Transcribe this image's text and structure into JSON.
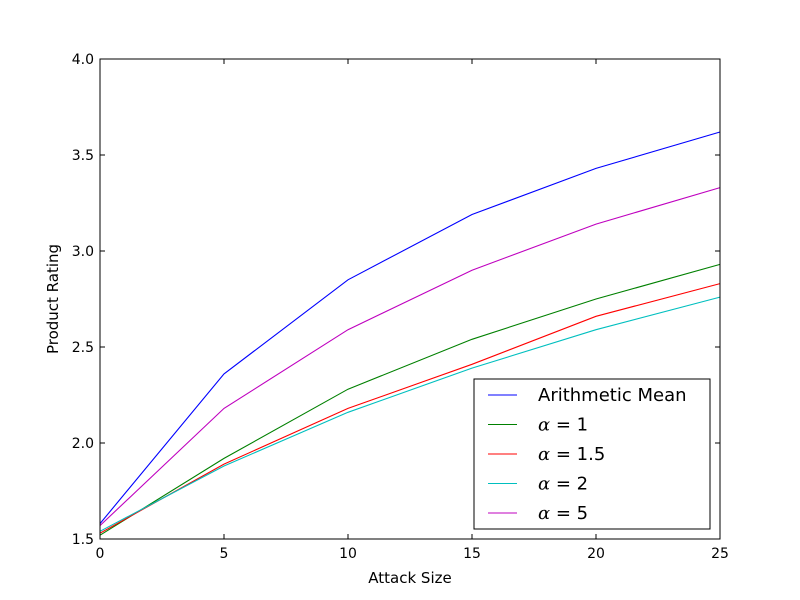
{
  "chart_data": {
    "type": "line",
    "title": "",
    "xlabel": "Attack Size",
    "ylabel": "Product Rating",
    "xlim": [
      0,
      25
    ],
    "ylim": [
      1.5,
      4.0
    ],
    "xticks": [
      0,
      5,
      10,
      15,
      20,
      25
    ],
    "yticks": [
      1.5,
      2.0,
      2.5,
      3.0,
      3.5,
      4.0
    ],
    "xtick_labels": [
      "0",
      "5",
      "10",
      "15",
      "20",
      "25"
    ],
    "ytick_labels": [
      "1.5",
      "2.0",
      "2.5",
      "3.0",
      "3.5",
      "4.0"
    ],
    "grid": false,
    "legend_position": "lower-right",
    "x": [
      0,
      5,
      10,
      15,
      20,
      25
    ],
    "series": [
      {
        "name": "Arithmetic Mean",
        "symbol": "",
        "value_text": "Arithmetic Mean",
        "color": "#0000ff",
        "values": [
          1.58,
          2.36,
          2.85,
          3.19,
          3.43,
          3.62
        ]
      },
      {
        "name": "alpha = 1",
        "symbol": "α",
        "value_text": " = 1",
        "color": "#008000",
        "values": [
          1.52,
          1.92,
          2.28,
          2.54,
          2.75,
          2.93
        ]
      },
      {
        "name": "alpha = 1.5",
        "symbol": "α",
        "value_text": " = 1.5",
        "color": "#ff0000",
        "values": [
          1.53,
          1.89,
          2.18,
          2.41,
          2.66,
          2.83
        ]
      },
      {
        "name": "alpha = 2",
        "symbol": "α",
        "value_text": " = 2",
        "color": "#00bfbf",
        "values": [
          1.54,
          1.88,
          2.16,
          2.39,
          2.59,
          2.76
        ]
      },
      {
        "name": "alpha = 5",
        "symbol": "α",
        "value_text": " = 5",
        "color": "#bf00bf",
        "values": [
          1.57,
          2.18,
          2.59,
          2.9,
          3.14,
          3.33
        ]
      }
    ]
  }
}
